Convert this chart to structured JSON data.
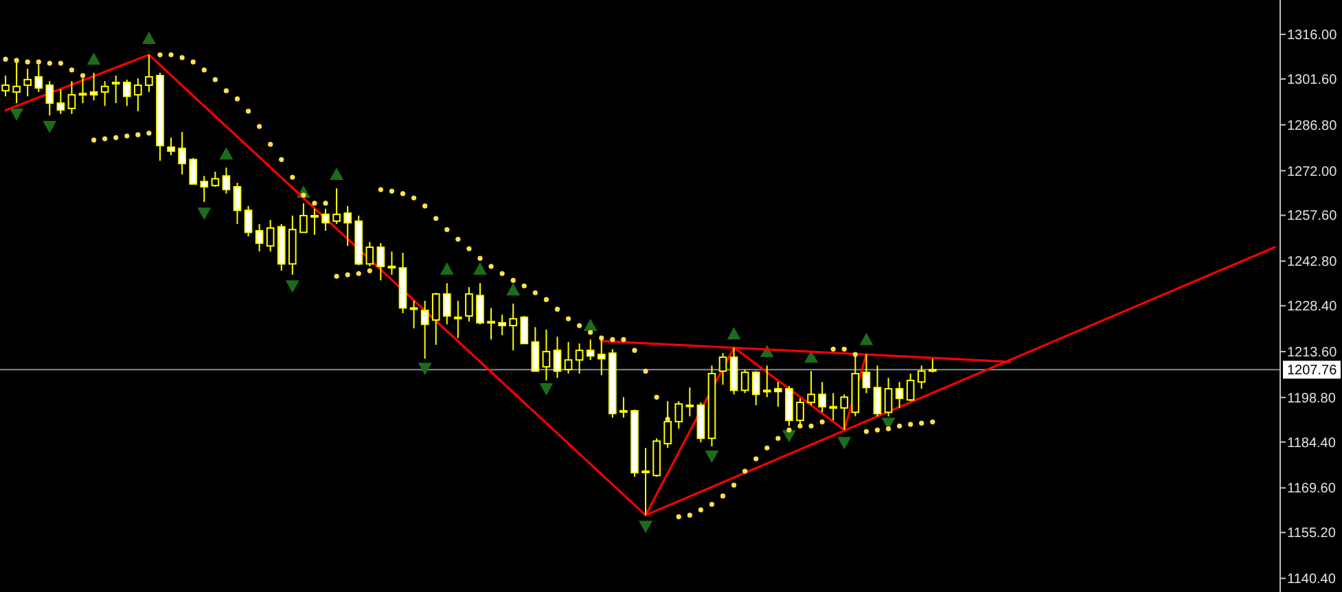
{
  "chart_data": {
    "type": "candlestick",
    "color": "#ffff00",
    "tick_labels": "y",
    "grid": false,
    "categories": [
      null,
      null,
      null,
      null,
      null,
      null,
      null,
      null,
      null,
      null,
      null,
      null,
      null,
      null,
      null,
      null,
      null,
      null,
      null,
      null,
      null,
      null,
      null,
      null,
      null,
      null,
      null,
      null,
      null,
      null,
      null,
      null,
      null,
      null,
      null,
      null,
      null,
      null,
      null,
      null,
      null,
      null,
      null,
      null,
      null,
      null,
      null,
      null,
      null,
      null,
      null,
      null,
      null,
      null,
      null,
      null,
      null,
      null,
      null,
      null,
      null,
      null,
      null,
      null,
      null,
      null,
      null,
      null,
      null,
      null,
      null,
      null,
      null,
      null,
      null,
      null,
      null,
      null,
      null,
      null,
      null,
      null,
      null,
      null,
      null,
      null,
      null,
      null,
      null,
      null,
      null,
      null,
      null,
      null,
      null,
      null,
      null,
      null,
      null,
      null,
      null,
      null,
      null,
      null,
      null,
      null,
      null,
      null,
      null,
      null,
      null,
      null,
      null,
      null,
      null,
      null
    ],
    "ylim": [
      1136,
      1327.1
    ],
    "yticks": [
      {
        "value": 1316,
        "label": "1316.00"
      },
      {
        "value": 1301.6,
        "label": "1301.60"
      },
      {
        "value": 1286.8,
        "label": "1286.80"
      },
      {
        "value": 1272,
        "label": "1272.00"
      },
      {
        "value": 1257.6,
        "label": "1257.60"
      },
      {
        "value": 1242.8,
        "label": "1242.80"
      },
      {
        "value": 1228.4,
        "label": "1228.40"
      },
      {
        "value": 1213.6,
        "label": "1213.60"
      },
      {
        "value": 1198.8,
        "label": "1198.80"
      },
      {
        "value": 1184.4,
        "label": "1184.40"
      },
      {
        "value": 1169.6,
        "label": "1169.60"
      },
      {
        "value": 1155.2,
        "label": "1155.20"
      },
      {
        "value": 1140.4,
        "label": "1140.40"
      }
    ],
    "ohlc": [
      [
        1297.8,
        1302.7,
        1296.0,
        1299.6
      ],
      [
        1297.4,
        1307.1,
        1293.8,
        1299.2
      ],
      [
        1299.6,
        1304.9,
        1296.0,
        1301.4
      ],
      [
        1302.3,
        1306.2,
        1297.4,
        1298.7
      ],
      [
        1299.6,
        1300.9,
        1289.8,
        1293.8
      ],
      [
        1293.8,
        1298.3,
        1290.3,
        1291.6
      ],
      [
        1292.1,
        1300.9,
        1290.3,
        1296.5
      ],
      [
        1296.9,
        1301.8,
        1293.8,
        1296.9
      ],
      [
        1297.4,
        1303.6,
        1294.7,
        1296.5
      ],
      [
        1297.4,
        1300.9,
        1292.9,
        1299.2
      ],
      [
        1300.5,
        1302.7,
        1293.8,
        1300.5
      ],
      [
        1300.5,
        1301.4,
        1292.9,
        1296.0
      ],
      [
        1296.5,
        1301.8,
        1291.2,
        1299.6
      ],
      [
        1299.6,
        1309.4,
        1297.4,
        1302.3
      ],
      [
        1302.7,
        1303.6,
        1275.2,
        1280.1
      ],
      [
        1279.6,
        1282.7,
        1277.0,
        1278.3
      ],
      [
        1279.2,
        1284.5,
        1270.8,
        1274.3
      ],
      [
        1275.6,
        1276.1,
        1267.7,
        1267.7
      ],
      [
        1268.5,
        1270.3,
        1261.9,
        1266.8
      ],
      [
        1267.2,
        1271.7,
        1266.8,
        1269.4
      ],
      [
        1270.3,
        1273.0,
        1264.6,
        1265.9
      ],
      [
        1266.8,
        1268.1,
        1254.8,
        1259.2
      ],
      [
        1259.2,
        1260.6,
        1250.8,
        1252.1
      ],
      [
        1252.6,
        1254.8,
        1245.9,
        1248.6
      ],
      [
        1247.7,
        1256.1,
        1245.9,
        1253.5
      ],
      [
        1253.9,
        1254.8,
        1239.7,
        1241.9
      ],
      [
        1241.9,
        1257.5,
        1238.4,
        1253.0
      ],
      [
        1252.1,
        1261.5,
        1252.1,
        1257.5
      ],
      [
        1257.5,
        1259.7,
        1251.3,
        1257.5
      ],
      [
        1257.9,
        1259.7,
        1252.6,
        1255.2
      ],
      [
        1255.7,
        1266.3,
        1254.8,
        1257.9
      ],
      [
        1258.3,
        1260.6,
        1247.7,
        1255.2
      ],
      [
        1255.7,
        1257.5,
        1241.5,
        1241.9
      ],
      [
        1241.9,
        1249.0,
        1241.1,
        1247.3
      ],
      [
        1247.3,
        1248.6,
        1236.6,
        1241.1
      ],
      [
        1241.1,
        1245.9,
        1238.4,
        1241.1
      ],
      [
        1240.6,
        1245.5,
        1226.0,
        1227.7
      ],
      [
        1227.7,
        1230.0,
        1221.1,
        1227.7
      ],
      [
        1226.9,
        1230.0,
        1211.3,
        1222.4
      ],
      [
        1223.8,
        1232.6,
        1215.8,
        1232.2
      ],
      [
        1232.2,
        1235.7,
        1222.4,
        1225.1
      ],
      [
        1224.7,
        1230.0,
        1218.0,
        1224.7
      ],
      [
        1225.1,
        1234.4,
        1223.3,
        1232.2
      ],
      [
        1231.7,
        1235.7,
        1222.4,
        1222.9
      ],
      [
        1223.3,
        1227.7,
        1217.5,
        1223.3
      ],
      [
        1222.9,
        1225.5,
        1218.9,
        1222.0
      ],
      [
        1222.0,
        1229.1,
        1214.0,
        1224.2
      ],
      [
        1224.7,
        1225.1,
        1216.2,
        1216.2
      ],
      [
        1216.7,
        1221.5,
        1207.3,
        1207.3
      ],
      [
        1208.7,
        1220.7,
        1204.3,
        1213.6
      ],
      [
        1214.0,
        1218.4,
        1205.1,
        1207.3
      ],
      [
        1207.8,
        1216.7,
        1206.5,
        1210.9
      ],
      [
        1210.9,
        1216.2,
        1206.5,
        1214.0
      ],
      [
        1214.0,
        1217.5,
        1210.9,
        1212.2
      ],
      [
        1212.7,
        1217.5,
        1206.0,
        1211.3
      ],
      [
        1213.1,
        1214.4,
        1192.3,
        1193.6
      ],
      [
        1194.5,
        1198.9,
        1192.3,
        1194.5
      ],
      [
        1194.5,
        1194.9,
        1173.2,
        1174.5
      ],
      [
        1175.0,
        1182.5,
        1160.8,
        1175.0
      ],
      [
        1173.6,
        1185.6,
        1173.2,
        1184.7
      ],
      [
        1183.9,
        1197.6,
        1182.5,
        1191.0
      ],
      [
        1191.0,
        1197.6,
        1188.7,
        1196.7
      ],
      [
        1196.3,
        1202.0,
        1192.7,
        1196.3
      ],
      [
        1196.3,
        1197.2,
        1184.3,
        1185.6
      ],
      [
        1185.6,
        1209.1,
        1183.0,
        1206.5
      ],
      [
        1207.3,
        1213.1,
        1202.9,
        1211.8
      ],
      [
        1211.8,
        1214.9,
        1199.8,
        1201.1
      ],
      [
        1201.1,
        1207.8,
        1200.2,
        1206.9
      ],
      [
        1206.9,
        1207.3,
        1196.3,
        1199.8
      ],
      [
        1201.1,
        1209.1,
        1198.9,
        1201.1
      ],
      [
        1201.6,
        1203.8,
        1195.8,
        1200.7
      ],
      [
        1201.6,
        1202.5,
        1189.6,
        1191.4
      ],
      [
        1191.4,
        1198.5,
        1190.1,
        1197.2
      ],
      [
        1197.2,
        1207.3,
        1196.3,
        1199.8
      ],
      [
        1199.8,
        1203.8,
        1194.0,
        1195.8
      ],
      [
        1195.8,
        1200.2,
        1191.4,
        1195.8
      ],
      [
        1195.4,
        1199.8,
        1188.3,
        1198.9
      ],
      [
        1194.0,
        1212.7,
        1192.7,
        1206.5
      ],
      [
        1206.9,
        1212.7,
        1200.2,
        1202.0
      ],
      [
        1202.0,
        1209.1,
        1192.7,
        1193.6
      ],
      [
        1194.0,
        1205.1,
        1192.7,
        1201.6
      ],
      [
        1201.6,
        1203.8,
        1195.4,
        1198.5
      ],
      [
        1198.0,
        1206.5,
        1197.6,
        1204.3
      ],
      [
        1203.8,
        1209.1,
        1201.6,
        1207.3
      ],
      [
        1207.3,
        1211.3,
        1206.9,
        1207.76
      ],
      null,
      null,
      null,
      null,
      null,
      null,
      null,
      null,
      null,
      null,
      null,
      null,
      null,
      null,
      null,
      null,
      null,
      null,
      null,
      null,
      null,
      null,
      null,
      null,
      null,
      null,
      null,
      null,
      null,
      null,
      null
    ],
    "series": [
      {
        "type": "scatter",
        "marker": "circle",
        "color": "#ffe14d",
        "values": [
          1308.0,
          1307.6,
          1307.1,
          1307.1,
          1306.7,
          1306.7,
          1304.5,
          1302.7,
          1281.9,
          1282.3,
          1282.7,
          1283.2,
          1283.6,
          1284.1,
          1309.4,
          1309.4,
          1308.5,
          1307.1,
          1304.5,
          1301.4,
          1297.8,
          1295.2,
          1291.2,
          1286.3,
          1280.5,
          1275.6,
          1269.9,
          1264.1,
          1261.5,
          1261.5,
          1237.9,
          1238.4,
          1238.8,
          1239.7,
          1265.9,
          1265.4,
          1264.6,
          1263.2,
          1260.6,
          1256.6,
          1253.0,
          1249.9,
          1246.8,
          1243.7,
          1241.1,
          1238.8,
          1236.6,
          1234.8,
          1232.6,
          1230.4,
          1227.3,
          1224.2,
          1222.0,
          1219.8,
          1218.0,
          1217.5,
          1217.5,
          1214.0,
          1207.3,
          1198.9,
          1191.8,
          1160.3,
          1160.8,
          1162.5,
          1164.3,
          1167.0,
          1170.5,
          1175.0,
          1179.0,
          1182.5,
          1185.6,
          1188.3,
          1189.6,
          1189.6,
          1190.9,
          1214.4,
          1214.4,
          1212.7,
          1187.8,
          1188.3,
          1188.7,
          1189.6,
          1190.1,
          1190.5,
          1190.9,
          null,
          null,
          null,
          null,
          null,
          null,
          null,
          null,
          null,
          null,
          null,
          null,
          null,
          null,
          null,
          null,
          null,
          null,
          null,
          null,
          null,
          null,
          null,
          null,
          null,
          null,
          null,
          null,
          null,
          null,
          null
        ]
      },
      {
        "type": "scatter",
        "marker": "triangle",
        "color": "#1d6b1d",
        "values": [
          null,
          null,
          null,
          null,
          null,
          null,
          null,
          null,
          1308.0,
          null,
          null,
          null,
          null,
          1314.7,
          null,
          null,
          null,
          null,
          null,
          null,
          1277.4,
          null,
          null,
          null,
          null,
          null,
          null,
          1265.0,
          null,
          null,
          1270.8,
          null,
          null,
          null,
          null,
          null,
          null,
          null,
          null,
          null,
          1240.2,
          null,
          null,
          1240.2,
          null,
          null,
          1233.5,
          null,
          null,
          null,
          null,
          null,
          null,
          1222.0,
          null,
          null,
          null,
          null,
          null,
          null,
          null,
          null,
          null,
          null,
          null,
          null,
          1219.3,
          null,
          null,
          1213.6,
          null,
          null,
          null,
          1211.8,
          null,
          null,
          null,
          null,
          1217.5,
          null,
          null,
          null,
          null,
          null,
          null,
          null,
          null,
          null,
          null,
          null,
          null,
          null,
          null,
          null,
          null,
          null,
          null,
          null,
          null,
          null,
          null,
          null,
          null,
          null,
          null,
          null,
          null,
          null,
          null,
          null,
          null,
          null,
          null,
          null,
          null,
          null
        ]
      },
      {
        "type": "scatter",
        "marker": "triangle",
        "color": "#1d6b1d",
        "values": [
          null,
          1290.3,
          null,
          null,
          1286.3,
          null,
          null,
          null,
          null,
          null,
          null,
          null,
          null,
          null,
          null,
          null,
          null,
          null,
          1258.3,
          null,
          null,
          null,
          null,
          null,
          null,
          null,
          1234.8,
          null,
          null,
          null,
          null,
          null,
          null,
          null,
          null,
          null,
          null,
          null,
          1208.2,
          null,
          null,
          null,
          null,
          null,
          null,
          null,
          null,
          null,
          null,
          1201.6,
          null,
          null,
          null,
          null,
          null,
          null,
          null,
          null,
          1157.2,
          null,
          null,
          null,
          null,
          null,
          1179.9,
          null,
          null,
          null,
          null,
          null,
          null,
          1186.5,
          null,
          null,
          null,
          null,
          1184.3,
          null,
          null,
          null,
          1190.5,
          null,
          null,
          null,
          null,
          null,
          null,
          null,
          null,
          null,
          null,
          null,
          null,
          null,
          null,
          null,
          null,
          null,
          null,
          null,
          null,
          null,
          null,
          null,
          null,
          null,
          null,
          null,
          null,
          null,
          null,
          null,
          null,
          null,
          null,
          null
        ]
      },
      {
        "type": "line",
        "marker": "none",
        "line_style": "solid",
        "color": "#ff0000",
        "values": [
          1291.5,
          null,
          null,
          null,
          null,
          null,
          null,
          null,
          null,
          null,
          null,
          null,
          null,
          1309.4,
          null,
          null,
          null,
          null,
          null,
          null,
          null,
          null,
          null,
          null,
          null,
          null,
          null,
          null,
          null,
          null,
          null,
          null,
          null,
          null,
          null,
          null,
          null,
          null,
          null,
          null,
          null,
          null,
          null,
          null,
          null,
          null,
          null,
          null,
          null,
          null,
          null,
          null,
          null,
          null,
          null,
          null,
          null,
          null,
          1160.8,
          null,
          null,
          null,
          null,
          null,
          null,
          null,
          1214.9,
          null,
          null,
          null,
          null,
          null,
          null,
          null,
          null,
          null,
          1188.3,
          null,
          1212.7,
          null,
          null,
          null,
          null,
          null,
          null,
          null,
          null,
          null,
          null,
          null,
          null,
          null,
          null,
          null,
          null,
          null,
          null,
          null,
          null,
          null,
          null,
          null,
          null,
          null,
          null,
          null,
          null,
          null,
          null,
          null,
          null,
          null,
          null,
          null,
          null,
          null
        ]
      },
      {
        "type": "line",
        "marker": "none",
        "line_style": "solid",
        "color": "#ff0000",
        "values": [
          null,
          null,
          null,
          null,
          null,
          null,
          null,
          null,
          null,
          null,
          null,
          null,
          null,
          null,
          null,
          null,
          null,
          null,
          null,
          null,
          null,
          null,
          null,
          null,
          null,
          null,
          null,
          null,
          null,
          null,
          null,
          null,
          null,
          null,
          null,
          null,
          null,
          null,
          null,
          null,
          null,
          null,
          null,
          null,
          null,
          null,
          null,
          null,
          null,
          null,
          null,
          null,
          null,
          null,
          1217.0,
          null,
          null,
          null,
          null,
          null,
          null,
          null,
          null,
          null,
          null,
          null,
          null,
          null,
          null,
          null,
          null,
          null,
          null,
          null,
          null,
          null,
          null,
          null,
          null,
          null,
          null,
          null,
          null,
          null,
          null,
          null,
          null,
          null,
          null,
          null,
          null,
          1210.3,
          null,
          null,
          null,
          null,
          null,
          null,
          null,
          null,
          null,
          null,
          null,
          null,
          null,
          null,
          null,
          null,
          null,
          null,
          null,
          null,
          null,
          null,
          null,
          null
        ]
      },
      {
        "type": "line",
        "marker": "none",
        "line_style": "solid",
        "color": "#ff0000",
        "values": [
          null,
          null,
          null,
          null,
          null,
          null,
          null,
          null,
          null,
          null,
          null,
          null,
          null,
          null,
          null,
          null,
          null,
          null,
          null,
          null,
          null,
          null,
          null,
          null,
          null,
          null,
          null,
          null,
          null,
          null,
          null,
          null,
          null,
          null,
          null,
          null,
          null,
          null,
          null,
          null,
          null,
          null,
          null,
          null,
          null,
          null,
          null,
          null,
          null,
          null,
          null,
          null,
          null,
          null,
          null,
          null,
          null,
          null,
          1160.8,
          null,
          null,
          null,
          null,
          null,
          null,
          null,
          null,
          null,
          null,
          null,
          null,
          null,
          null,
          null,
          null,
          null,
          null,
          null,
          null,
          null,
          null,
          null,
          null,
          null,
          null,
          null,
          null,
          null,
          null,
          null,
          null,
          null,
          null,
          null,
          null,
          null,
          null,
          null,
          null,
          null,
          null,
          null,
          null,
          null,
          null,
          null,
          null,
          null,
          null,
          null,
          null,
          null,
          null,
          null,
          null,
          1247.3
        ]
      }
    ],
    "ref_lines": [
      {
        "axis": "y",
        "value": 1207.76,
        "label": "1207.76",
        "color": "#7f8c9a"
      }
    ]
  }
}
